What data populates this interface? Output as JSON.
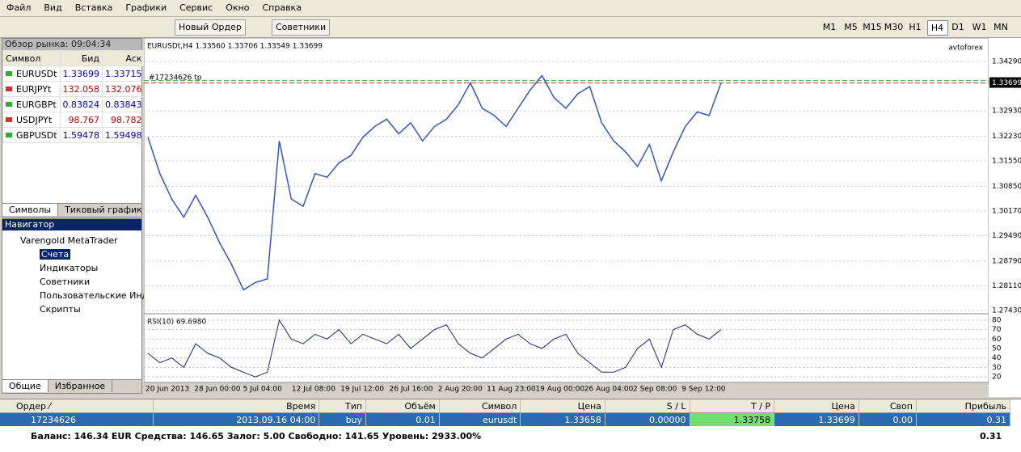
{
  "menu": [
    "Файл",
    "Вид",
    "Вставка",
    "Графики",
    "Сервис",
    "Окно",
    "Справка"
  ],
  "toolbar": {
    "new_order": "Новый Ордер",
    "experts": "Советники",
    "timeframes": [
      "M1",
      "M5",
      "M15",
      "M30",
      "H1",
      "H4",
      "D1",
      "W1",
      "MN"
    ]
  },
  "market_watch": {
    "title": "Обзор рынка: 09:04:34",
    "columns": [
      "Символ",
      "Бид",
      "Аск"
    ],
    "rows": [
      [
        "EURUSDt",
        "1.33699",
        "1.33715"
      ],
      [
        "EURJPYt",
        "132.058",
        "132.076"
      ],
      [
        "EURGBPt",
        "0.83824",
        "0.83843"
      ],
      [
        "USDJPYt",
        "98.767",
        "98.782"
      ],
      [
        "GBPUSDt",
        "1.59478",
        "1.59498"
      ]
    ],
    "tabs": [
      "Символы",
      "Тиковый график"
    ]
  },
  "navigator": {
    "title": "Навигатор",
    "items": [
      "Varengold MetaTrader",
      "Счета",
      "Индикаторы",
      "Советники",
      "Пользовательские Индик...",
      "Скрипты"
    ],
    "tabs": [
      "Общие",
      "Избранное"
    ]
  },
  "chart": {
    "symbol_info": "EURUSDt,H4  1.33560 1.33706 1.33549 1.33699",
    "brand": "avtoforex",
    "order_label": "#17234626 tp",
    "price": [
      1.322,
      1.312,
      1.305,
      1.3,
      1.306,
      1.3,
      1.293,
      1.287,
      1.28,
      1.282,
      1.283,
      1.321,
      1.305,
      1.303,
      1.312,
      1.311,
      1.315,
      1.317,
      1.322,
      1.325,
      1.327,
      1.323,
      1.326,
      1.321,
      1.325,
      1.327,
      1.331,
      1.337,
      1.33,
      1.328,
      1.325,
      1.33,
      1.335,
      1.339,
      1.333,
      1.33,
      1.334,
      1.336,
      1.326,
      1.321,
      1.318,
      1.314,
      1.32,
      1.31,
      1.318,
      1.325,
      1.329,
      1.328,
      1.337
    ],
    "ylim": [
      1.2734,
      1.3487
    ],
    "yticks": [
      {
        "value": 1.3429,
        "label": "1.34290"
      },
      {
        "value": 1.3293,
        "label": "1.32930"
      },
      {
        "value": 1.3223,
        "label": "1.32230"
      },
      {
        "value": 1.3155,
        "label": "1.31550"
      },
      {
        "value": 1.3085,
        "label": "1.30850"
      },
      {
        "value": 1.3017,
        "label": "1.30170"
      },
      {
        "value": 1.2949,
        "label": "1.29490"
      },
      {
        "value": 1.2879,
        "label": "1.28790"
      },
      {
        "value": 1.2811,
        "label": "1.28110"
      },
      {
        "value": 1.2743,
        "label": "1.27430"
      }
    ],
    "bid": {
      "value": 1.33699,
      "label": "1.33699"
    },
    "rsi_label": "RSI(10) 69.6980",
    "rsi": [
      45,
      35,
      40,
      30,
      55,
      45,
      40,
      30,
      25,
      20,
      25,
      80,
      60,
      55,
      65,
      60,
      70,
      55,
      65,
      60,
      55,
      65,
      50,
      60,
      70,
      75,
      55,
      45,
      40,
      50,
      60,
      65,
      55,
      50,
      60,
      65,
      45,
      35,
      25,
      25,
      30,
      50,
      60,
      30,
      70,
      75,
      65,
      60,
      70
    ],
    "rsi_ylim": [
      15,
      85
    ],
    "rsi_yticks": [
      80,
      70,
      60,
      50,
      40,
      30,
      20
    ],
    "x_labels": [
      "20 Jun 2013",
      "28 Jun 00:00",
      "5 Jul 04:00",
      "12 Jul 08:00",
      "19 Jul 12:00",
      "26 Jul 16:00",
      "2 Aug 20:00",
      "11 Aug 23:00",
      "19 Aug 00:00",
      "26 Aug 04:00",
      "2 Sep 08:00",
      "9 Sep 12:00"
    ]
  },
  "terminal": {
    "columns": [
      "Ордер  ⁄",
      "Время",
      "Тип",
      "Объём",
      "Символ",
      "Цена",
      "S / L",
      "T / P",
      "Цена",
      "Своп",
      "Прибыль"
    ],
    "rows": [
      [
        "17234626",
        "2013.09.16 04:00",
        "buy",
        "0.01",
        "eurusdt",
        "1.33658",
        "0.00000",
        "1.33758",
        "1.33699",
        "0.00",
        "0.31"
      ]
    ],
    "summary": "Баланс: 146.34 EUR  Средства: 146.65  Залог: 5.00  Свободно: 141.65  Уровень: 2933.00%",
    "summary_profit": "0.31"
  }
}
